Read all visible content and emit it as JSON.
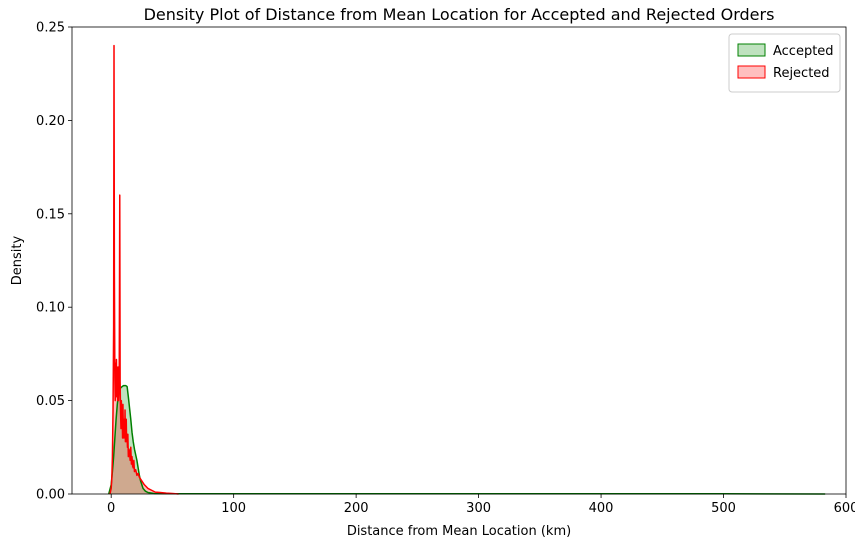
{
  "chart_data": {
    "type": "area",
    "title": "Density Plot of Distance from Mean Location for Accepted and Rejected Orders",
    "xlabel": "Distance from Mean Location (km)",
    "ylabel": "Density",
    "xlim": [
      -32,
      600
    ],
    "ylim": [
      0,
      0.25
    ],
    "xticks": [
      0,
      100,
      200,
      300,
      400,
      500,
      600
    ],
    "yticks": [
      0.0,
      0.05,
      0.1,
      0.15,
      0.2,
      0.25
    ],
    "xtick_labels": [
      "0",
      "100",
      "200",
      "300",
      "400",
      "500",
      "600"
    ],
    "ytick_labels": [
      "0.00",
      "0.05",
      "0.10",
      "0.15",
      "0.20",
      "0.25"
    ],
    "grid": false,
    "legend_position": "top-right",
    "series": [
      {
        "name": "Accepted",
        "line_color": "#008000",
        "fill_color": "#2ca02c",
        "fill_opacity": 0.3,
        "x": [
          -2,
          0,
          1,
          2,
          3,
          4,
          5,
          6,
          7,
          8,
          9,
          10,
          11,
          12,
          13,
          14,
          15,
          16,
          17,
          18,
          19,
          20,
          21,
          22,
          23,
          24,
          25,
          26,
          28,
          30,
          35,
          40,
          60,
          100,
          200,
          300,
          400,
          500,
          583
        ],
        "y": [
          0.0,
          0.005,
          0.012,
          0.02,
          0.03,
          0.04,
          0.048,
          0.054,
          0.056,
          0.057,
          0.0575,
          0.058,
          0.058,
          0.058,
          0.0575,
          0.052,
          0.046,
          0.04,
          0.033,
          0.028,
          0.024,
          0.021,
          0.018,
          0.014,
          0.01,
          0.007,
          0.005,
          0.003,
          0.0015,
          0.0008,
          0.0003,
          0.0002,
          0.0001,
          0.0001,
          0.0001,
          0.0001,
          0.0001,
          0.0001,
          0.0
        ]
      },
      {
        "name": "Rejected",
        "line_color": "#ff0000",
        "fill_color": "#ff0000",
        "fill_opacity": 0.25,
        "x": [
          -1,
          0,
          0.5,
          1,
          1.5,
          2,
          2.3,
          2.6,
          3,
          3.3,
          3.6,
          4,
          4.3,
          4.6,
          5,
          5.3,
          5.6,
          6,
          6.3,
          6.6,
          7,
          7.3,
          7.6,
          8,
          8.3,
          8.6,
          9,
          9.3,
          9.6,
          10,
          10.3,
          10.6,
          11,
          11.3,
          11.6,
          12,
          12.3,
          12.6,
          13,
          13.3,
          13.6,
          14,
          14.5,
          15,
          15.5,
          16,
          16.5,
          17,
          17.5,
          18,
          18.5,
          19,
          20,
          21,
          22,
          23,
          24,
          25,
          27,
          30,
          33,
          36,
          40,
          45,
          50,
          55
        ],
        "y": [
          0.0,
          0.003,
          0.008,
          0.02,
          0.045,
          0.09,
          0.24,
          0.12,
          0.062,
          0.05,
          0.07,
          0.052,
          0.072,
          0.055,
          0.06,
          0.05,
          0.068,
          0.05,
          0.055,
          0.07,
          0.16,
          0.06,
          0.045,
          0.035,
          0.05,
          0.04,
          0.042,
          0.03,
          0.048,
          0.03,
          0.04,
          0.032,
          0.03,
          0.045,
          0.028,
          0.032,
          0.04,
          0.028,
          0.03,
          0.025,
          0.032,
          0.02,
          0.024,
          0.022,
          0.018,
          0.025,
          0.016,
          0.02,
          0.015,
          0.014,
          0.018,
          0.012,
          0.013,
          0.01,
          0.011,
          0.009,
          0.008,
          0.007,
          0.005,
          0.003,
          0.002,
          0.001,
          0.0008,
          0.0005,
          0.0003,
          0.0
        ]
      }
    ]
  }
}
